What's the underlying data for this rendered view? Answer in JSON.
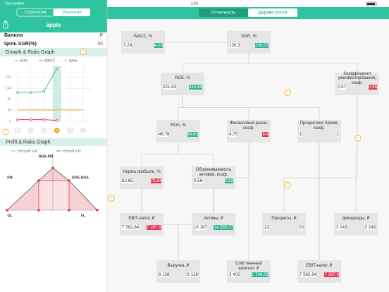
{
  "status_bar": {
    "back": "Настройки",
    "time": "1:16"
  },
  "help_icon": "?",
  "sidebar": {
    "tabs": [
      "Стратегия",
      "Решения"
    ],
    "title": "apple",
    "rows": [
      {
        "label": "Валюта",
        "value": "₽"
      },
      {
        "label": "Цель SGR(%)",
        "value": "50"
      }
    ],
    "growth_graph": {
      "type": "line",
      "title": "Growth & Risks Graph",
      "x": [
        1,
        2,
        3,
        4,
        5,
        6
      ],
      "current_step": 4,
      "series": [
        {
          "name": "SGR",
          "color": "#2bb597",
          "values": [
            126.3,
            126.3,
            130,
            230.07,
            null,
            null
          ]
        },
        {
          "name": "WACC",
          "color": "#e8344e",
          "values": [
            7.28,
            7.28,
            7.28,
            4.19,
            null,
            null
          ]
        },
        {
          "name": "Цель",
          "color": "#f5a623",
          "values": [
            50,
            50,
            50,
            50,
            50,
            50
          ]
        }
      ],
      "ylim": [
        0,
        240
      ],
      "yticks": [
        0,
        48,
        96,
        144,
        192
      ],
      "grid": true
    },
    "profit_graph": {
      "title": "Profit & Risks Graph",
      "legend": [
        "текущий шаг",
        "первый шаг"
      ],
      "labels": [
        "ROA-PM",
        "PM",
        "ROE-ROA",
        "OL",
        "FL"
      ]
    }
  },
  "tabs": [
    "Отчетность",
    "Дерево роста"
  ],
  "tree": {
    "nodes": [
      {
        "title": "WACC, %",
        "values": [
          "7,28",
          "4,19"
        ],
        "highlight": "#2bb597"
      },
      {
        "title": "SGR, %",
        "values": [
          "126,3",
          "230,07"
        ],
        "highlight": "#2bb597"
      },
      {
        "title": "ROE, %",
        "values": [
          "221,63",
          "415,59"
        ],
        "highlight": "#2bb597"
      },
      {
        "title": "Коэффициент реинвестирования, коэф.",
        "values": [
          "0,57",
          "0,55"
        ],
        "highlight": "#e8344e"
      },
      {
        "title": "ROA, %",
        "values": [
          "46,78",
          "49,63"
        ],
        "highlight": "#2bb597"
      },
      {
        "title": "Финансовый рычаг, коэф.",
        "values": [
          "4,75",
          "8,4"
        ],
        "highlight": "#e8344e"
      },
      {
        "title": "Процентное бремя, коэф.",
        "values": [
          "1",
          "1"
        ]
      },
      {
        "title": "Норма прибыли, %",
        "values": [
          "82,85",
          "79,84"
        ],
        "highlight": "#e8344e"
      },
      {
        "title": "Оборачиваемость активов, коэф.",
        "values": [
          "0,56",
          "0,62"
        ],
        "highlight": "#2bb597"
      },
      {
        "title": "EBIT-налог, ₽",
        "values": [
          "7 562,84",
          "7 287,9"
        ],
        "highlight": "#e8344e"
      },
      {
        "title": "Активы, ₽",
        "values": [
          "16 167",
          "14 585,57"
        ],
        "highlight": "#2bb597"
      },
      {
        "title": "Проценты, ₽",
        "values": [
          "23",
          "23"
        ]
      },
      {
        "title": "Дивиденды, ₽",
        "values": [
          "3 243",
          "3 243"
        ]
      },
      {
        "title": "Выручка, ₽",
        "values": [
          "9 128",
          "9 128"
        ]
      },
      {
        "title": "Собственный капитал, ₽",
        "values": [
          "3 402",
          "1 748,09"
        ],
        "highlight": "#2bb597"
      },
      {
        "title": "EBIT-налог, ₽",
        "values": [
          "7 562,84",
          "7 287,9"
        ],
        "highlight": "#e8344e"
      }
    ]
  }
}
